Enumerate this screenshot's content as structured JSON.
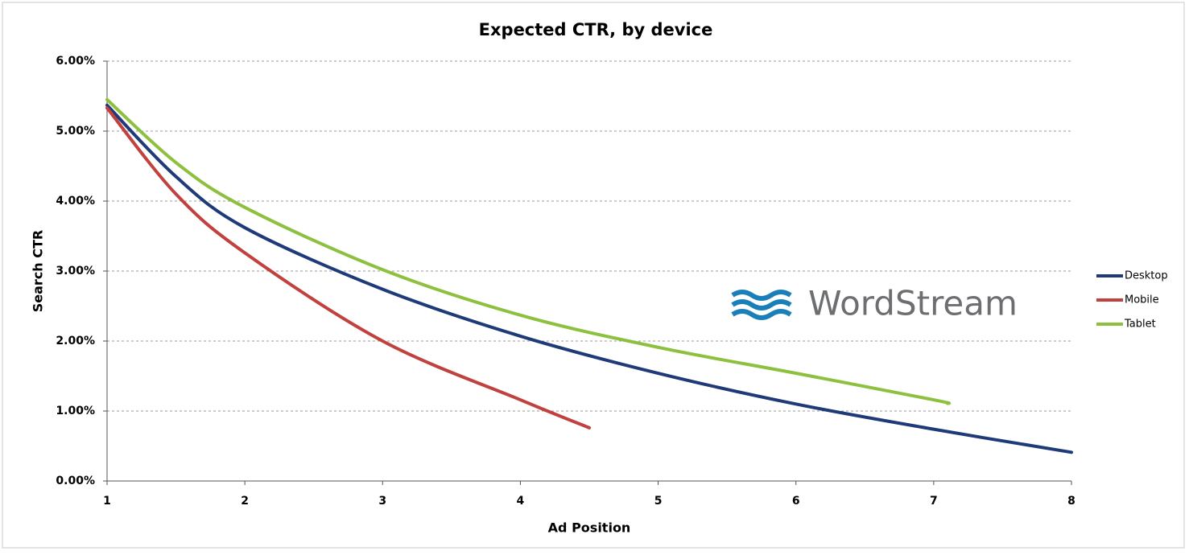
{
  "chart_data": {
    "type": "line",
    "title": "Expected CTR, by device",
    "x_label": "Ad Position",
    "y_label": "Search CTR",
    "watermark": "WordStream",
    "xlim": [
      1,
      8
    ],
    "xticks": [
      1,
      2,
      3,
      4,
      5,
      6,
      7,
      8
    ],
    "ylim": [
      0,
      6
    ],
    "yticks": [
      {
        "value": 0,
        "label": "0.00%"
      },
      {
        "value": 1,
        "label": "1.00%"
      },
      {
        "value": 2,
        "label": "2.00%"
      },
      {
        "value": 3,
        "label": "3.00%"
      },
      {
        "value": 4,
        "label": "4.00%"
      },
      {
        "value": 5,
        "label": "5.00%"
      },
      {
        "value": 6,
        "label": "6.00%"
      }
    ],
    "grid": true,
    "legend": "right",
    "series": [
      {
        "name": "Desktop",
        "color": "#1f3a78",
        "x": [
          1,
          1.5,
          2,
          3,
          4,
          5,
          6,
          7,
          8
        ],
        "values": [
          5.37,
          4.35,
          3.62,
          2.74,
          2.07,
          1.54,
          1.1,
          0.74,
          0.41
        ]
      },
      {
        "name": "Mobile",
        "color": "#c0413d",
        "x": [
          1,
          1.5,
          2,
          3,
          4,
          4.5
        ],
        "values": [
          5.33,
          4.1,
          3.26,
          2.0,
          1.16,
          0.76
        ]
      },
      {
        "name": "Tablet",
        "color": "#8dc03f",
        "x": [
          1,
          1.5,
          2,
          3,
          4,
          5,
          6,
          7,
          7.1
        ],
        "values": [
          5.45,
          4.55,
          3.91,
          3.02,
          2.37,
          1.91,
          1.54,
          1.16,
          1.11
        ]
      }
    ]
  }
}
